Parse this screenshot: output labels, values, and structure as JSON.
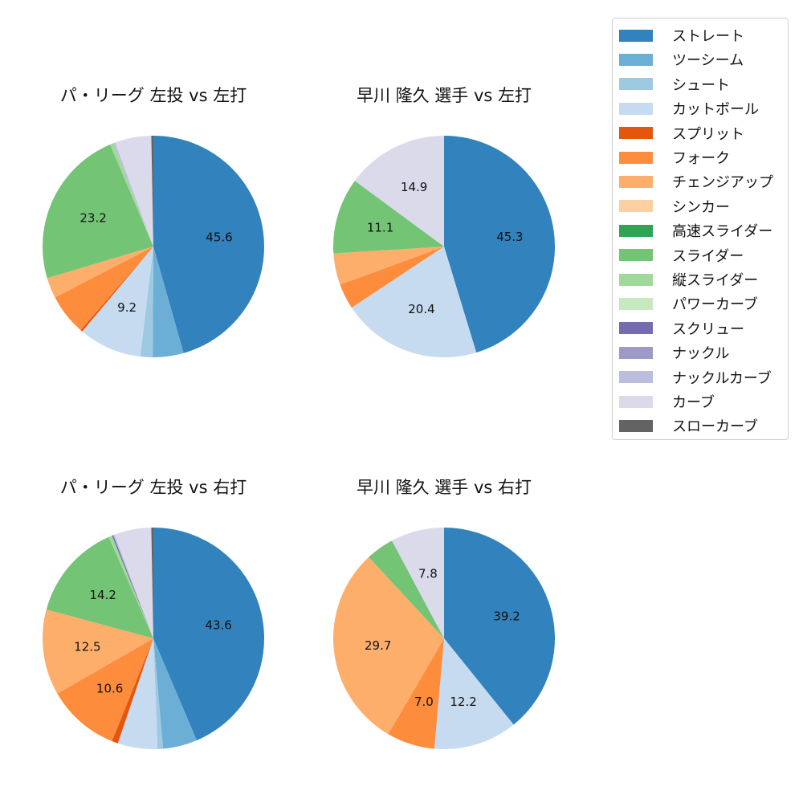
{
  "legend": {
    "items": [
      {
        "label": "ストレート",
        "color": "#3182bd"
      },
      {
        "label": "ツーシーム",
        "color": "#6baed6"
      },
      {
        "label": "シュート",
        "color": "#9ecae1"
      },
      {
        "label": "カットボール",
        "color": "#c6dbef"
      },
      {
        "label": "スプリット",
        "color": "#e6550d"
      },
      {
        "label": "フォーク",
        "color": "#fd8d3c"
      },
      {
        "label": "チェンジアップ",
        "color": "#fdae6b"
      },
      {
        "label": "シンカー",
        "color": "#fdd0a2"
      },
      {
        "label": "高速スライダー",
        "color": "#31a354"
      },
      {
        "label": "スライダー",
        "color": "#74c476"
      },
      {
        "label": "縦スライダー",
        "color": "#a1d99b"
      },
      {
        "label": "パワーカーブ",
        "color": "#c7e9c0"
      },
      {
        "label": "スクリュー",
        "color": "#756bb1"
      },
      {
        "label": "ナックル",
        "color": "#9e9ac8"
      },
      {
        "label": "ナックルカーブ",
        "color": "#bcbddc"
      },
      {
        "label": "カーブ",
        "color": "#dadaeb"
      },
      {
        "label": "スローカーブ",
        "color": "#636363"
      }
    ]
  },
  "chart_data": [
    {
      "type": "pie",
      "title": "パ・リーグ 左投 vs 左打",
      "categories": [
        "ストレート",
        "ツーシーム",
        "シュート",
        "カットボール",
        "スプリット",
        "フォーク",
        "チェンジアップ",
        "シンカー",
        "高速スライダー",
        "スライダー",
        "縦スライダー",
        "パワーカーブ",
        "スクリュー",
        "ナックル",
        "ナックルカーブ",
        "カーブ",
        "スローカーブ"
      ],
      "values": [
        45.6,
        4.5,
        1.8,
        9.2,
        0.3,
        6.0,
        3.0,
        0,
        0,
        23.2,
        0.5,
        0,
        0,
        0,
        0.3,
        5.3,
        0.3
      ],
      "labels_shown": [
        "45.6",
        "9.2",
        "23.2"
      ]
    },
    {
      "type": "pie",
      "title": "早川 隆久 選手 vs 左打",
      "categories": [
        "ストレート",
        "カットボール",
        "フォーク",
        "チェンジアップ",
        "スライダー",
        "カーブ"
      ],
      "values": [
        45.3,
        20.4,
        3.7,
        4.6,
        11.1,
        14.9
      ],
      "labels_shown": [
        "45.3",
        "20.4",
        "11.1",
        "14.9"
      ]
    },
    {
      "type": "pie",
      "title": "パ・リーグ 左投 vs 右打",
      "categories": [
        "ストレート",
        "ツーシーム",
        "シュート",
        "カットボール",
        "スプリット",
        "フォーク",
        "チェンジアップ",
        "シンカー",
        "高速スライダー",
        "スライダー",
        "縦スライダー",
        "パワーカーブ",
        "スクリュー",
        "ナックル",
        "ナックルカーブ",
        "カーブ",
        "スローカーブ"
      ],
      "values": [
        43.6,
        5.0,
        0.8,
        5.8,
        0.9,
        10.6,
        12.5,
        0,
        0,
        14.2,
        0.5,
        0,
        0.2,
        0,
        0.2,
        5.4,
        0.3
      ],
      "labels_shown": [
        "43.6",
        "10.6",
        "12.5",
        "14.2"
      ]
    },
    {
      "type": "pie",
      "title": "早川 隆久 選手 vs 右打",
      "categories": [
        "ストレート",
        "カットボール",
        "フォーク",
        "チェンジアップ",
        "スライダー",
        "カーブ"
      ],
      "values": [
        39.2,
        12.2,
        7.0,
        29.7,
        4.1,
        7.8
      ],
      "labels_shown": [
        "39.2",
        "12.2",
        "7.0",
        "29.7",
        "7.8"
      ]
    }
  ],
  "panels": [
    {
      "title": "パ・リーグ 左投 vs 左打"
    },
    {
      "title": "早川 隆久 選手 vs 左打"
    },
    {
      "title": "パ・リーグ 左投 vs 右打"
    },
    {
      "title": "早川 隆久 選手 vs 右打"
    }
  ]
}
